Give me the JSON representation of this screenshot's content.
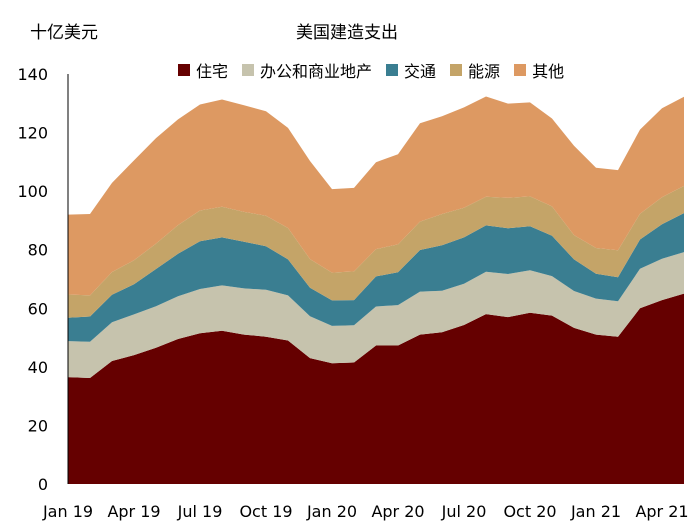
{
  "chart_data": {
    "type": "area",
    "stacked": true,
    "title": "美国建造支出",
    "unit_label": "十亿美元",
    "ylim": [
      0,
      140
    ],
    "y_ticks": [
      0,
      20,
      40,
      60,
      80,
      100,
      120,
      140
    ],
    "x": [
      "Jan 19",
      "Feb 19",
      "Mar 19",
      "Apr 19",
      "May 19",
      "Jun 19",
      "Jul 19",
      "Aug 19",
      "Sep 19",
      "Oct 19",
      "Nov 19",
      "Dec 19",
      "Jan 20",
      "Feb 20",
      "Mar 20",
      "Apr 20",
      "May 20",
      "Jun 20",
      "Jul 20",
      "Aug 20",
      "Sep 20",
      "Oct 20",
      "Nov 20",
      "Dec 20",
      "Jan 21",
      "Feb 21",
      "Mar 21",
      "Apr 21",
      "May 21"
    ],
    "x_tick_labels": [
      "Jan 19",
      "Apr 19",
      "Jul 19",
      "Oct 19",
      "Jan 20",
      "Apr 20",
      "Jul 20",
      "Oct 20",
      "Jan 21",
      "Apr 21"
    ],
    "legend_position": "top",
    "grid": false,
    "series": [
      {
        "name": "住宅",
        "color": "#650000",
        "values": [
          36.5,
          36.2,
          42,
          44,
          46.5,
          49.5,
          51.5,
          52.3,
          51,
          50.3,
          49,
          43,
          41.2,
          41.5,
          47.3,
          47.3,
          51,
          51.8,
          54.3,
          58,
          57,
          58.5,
          57.5,
          53.3,
          51,
          50.3,
          60,
          62.8,
          65
        ]
      },
      {
        "name": "办公和商业地产",
        "color": "#c6c3ad",
        "values": [
          12.3,
          12.4,
          13.2,
          13.9,
          14.2,
          14.6,
          15.1,
          15.5,
          15.8,
          16,
          15.4,
          14.3,
          12.8,
          12.7,
          13.3,
          13.8,
          14.7,
          14.2,
          14.1,
          14.5,
          14.7,
          14.5,
          13.5,
          12.6,
          12.3,
          12.1,
          13.5,
          14.1,
          14.2
        ]
      },
      {
        "name": "交通",
        "color": "#3a7e91",
        "values": [
          8,
          8.6,
          9.4,
          10.3,
          12.7,
          14.5,
          16.3,
          16.4,
          15.9,
          14.9,
          12.3,
          9.7,
          8.7,
          8.6,
          10.3,
          11.2,
          14.2,
          15.5,
          15.8,
          15.8,
          15.6,
          15,
          13.8,
          10.8,
          8.5,
          8.2,
          10,
          11.8,
          13.3
        ]
      },
      {
        "name": "能源",
        "color": "#c4a468",
        "values": [
          7.9,
          7.2,
          7.8,
          8.2,
          8.7,
          9.8,
          10.5,
          10.5,
          10.2,
          10.4,
          10.7,
          9.8,
          9.5,
          9.8,
          9.3,
          9.5,
          9.7,
          10.7,
          10.1,
          9.8,
          10.4,
          10.2,
          10,
          8.3,
          8.8,
          9.2,
          8.8,
          9.2,
          9.3
        ]
      },
      {
        "name": "其他",
        "color": "#dd9962",
        "values": [
          27.3,
          27.8,
          30.4,
          34.1,
          36,
          36.1,
          36.2,
          36.6,
          36.4,
          35.7,
          34.2,
          33.5,
          28.5,
          28.5,
          29.7,
          30.8,
          33.6,
          33.4,
          34.3,
          34.2,
          32.2,
          32.1,
          30,
          30.5,
          27.4,
          27.4,
          28.7,
          30.4,
          30.4
        ]
      }
    ]
  }
}
